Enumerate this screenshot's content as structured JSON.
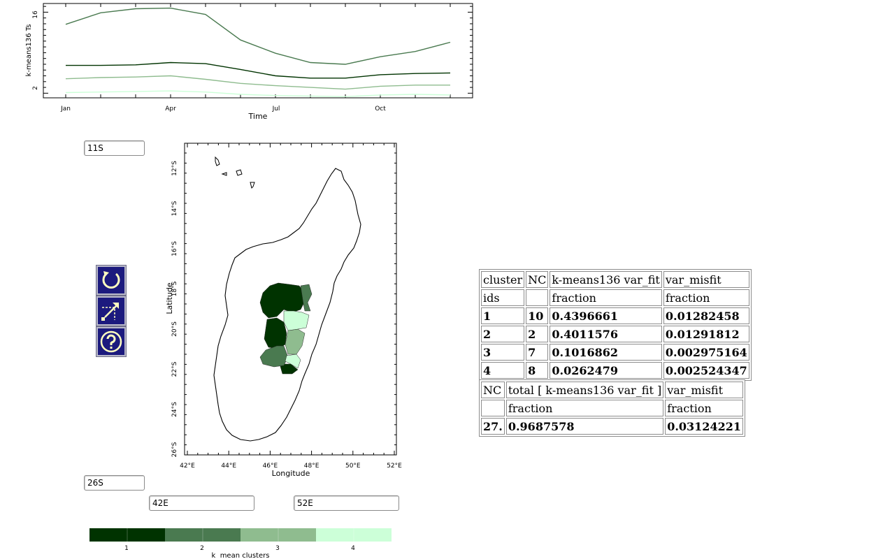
{
  "timeseries": {
    "ylabel": "k-means136 Ts",
    "xlabel": "Time",
    "y_ticks": [
      "2",
      "16"
    ],
    "x_ticks": [
      "Jan",
      "Apr",
      "Jul",
      "Oct"
    ],
    "colors": [
      "#4a7a50",
      "#003300",
      "#8fbc8f",
      "#ccffd8"
    ],
    "chart_data": {
      "type": "line",
      "x": [
        "Jan",
        "Feb",
        "Mar",
        "Apr",
        "May",
        "Jun",
        "Jul",
        "Aug",
        "Sep",
        "Oct",
        "Nov",
        "Dec"
      ],
      "ylim": [
        1.2,
        17.5
      ],
      "series": [
        {
          "values": [
            13.9,
            15.9,
            16.6,
            16.7,
            15.6,
            11.2,
            8.9,
            7.3,
            7.0,
            8.3,
            9.2,
            10.8
          ]
        },
        {
          "values": [
            6.8,
            6.8,
            6.9,
            7.3,
            7.1,
            6.1,
            5.0,
            4.6,
            4.6,
            5.2,
            5.4,
            5.5
          ]
        },
        {
          "values": [
            4.5,
            4.7,
            4.8,
            5.0,
            4.4,
            3.7,
            3.3,
            3.0,
            2.7,
            3.2,
            3.4,
            3.4
          ]
        },
        {
          "values": [
            2.1,
            2.2,
            2.3,
            2.4,
            2.2,
            1.8,
            1.6,
            1.5,
            1.4,
            1.7,
            1.8,
            1.7
          ]
        }
      ]
    }
  },
  "map": {
    "ylabel": "Latitude",
    "xlabel": "Longitude",
    "lat_ticks": [
      "12°S",
      "14°S",
      "16°S",
      "18°S",
      "20°S",
      "22°S",
      "24°S",
      "26°S"
    ],
    "lon_ticks": [
      "42°E",
      "44°E",
      "46°E",
      "48°E",
      "50°E",
      "52°E"
    ],
    "cluster_colors": [
      "#003300",
      "#4a7a50",
      "#8fbc8f",
      "#ccffd8"
    ]
  },
  "inputs": {
    "lat_north": "11S",
    "lat_south": "26S",
    "lon_west": "42E",
    "lon_east": "52E"
  },
  "colorbar": {
    "labels": [
      "1",
      "2",
      "3",
      "4"
    ],
    "title": "k  mean clusters",
    "colors": [
      "#003300",
      "#4a7a50",
      "#8fbc8f",
      "#ccffd8"
    ]
  },
  "cluster_table": {
    "header1": [
      "cluster",
      "NC",
      "k-means136 var_fit",
      "var_misfit"
    ],
    "header2": [
      "ids",
      "",
      "fraction",
      "fraction"
    ],
    "rows": [
      [
        "1",
        "10",
        "0.4396661",
        "0.01282458"
      ],
      [
        "2",
        "2",
        "0.4011576",
        "0.01291812"
      ],
      [
        "3",
        "7",
        "0.1016862",
        "0.002975164"
      ],
      [
        "4",
        "8",
        "0.0262479",
        "0.002524347"
      ]
    ]
  },
  "total_table": {
    "header1": [
      "NC",
      "total [ k-means136 var_fit ]",
      "var_misfit"
    ],
    "header2": [
      "",
      "fraction",
      "fraction"
    ],
    "row": [
      "27.",
      "0.9687578",
      "0.03124221"
    ]
  }
}
